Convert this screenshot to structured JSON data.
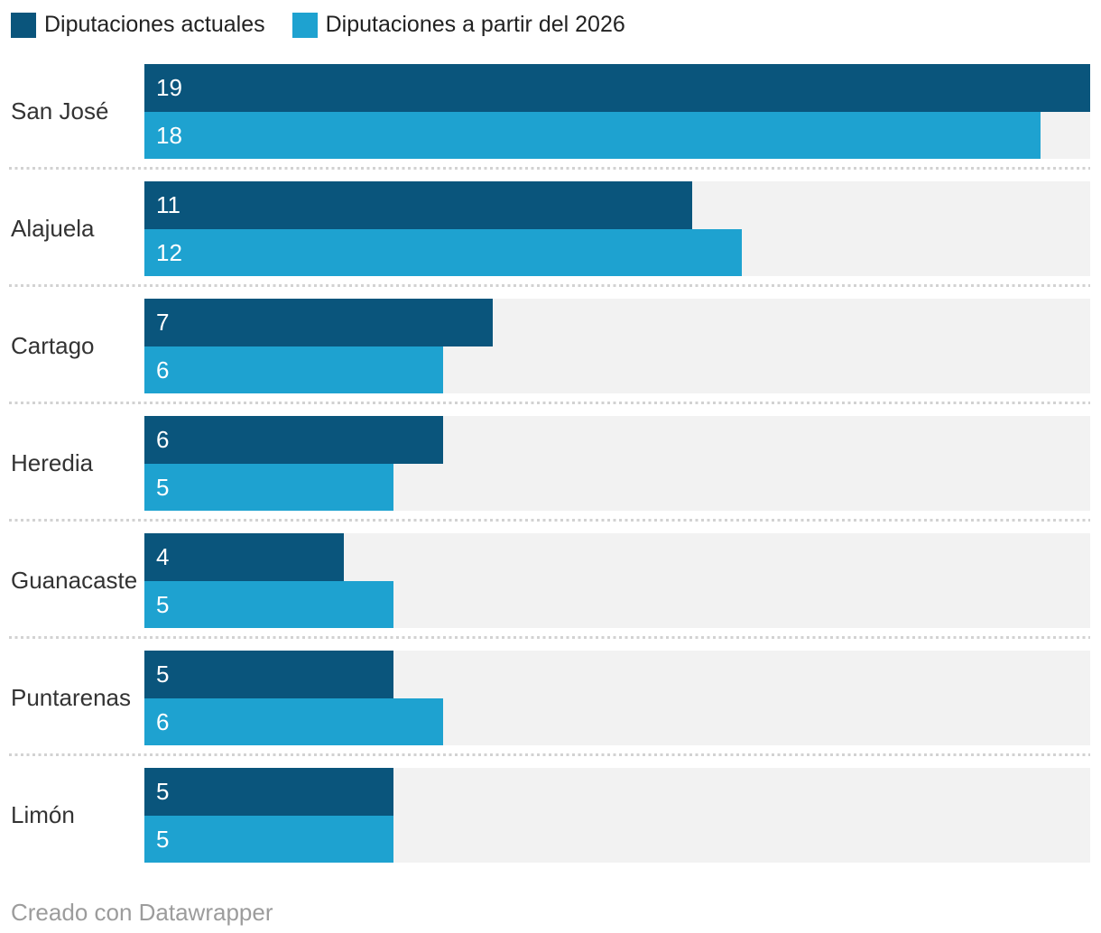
{
  "legend": {
    "items": [
      {
        "label": "Diputaciones actuales",
        "color": "#0A557C"
      },
      {
        "label": "Diputaciones a partir del 2026",
        "color": "#1EA2D0"
      }
    ]
  },
  "chart_data": {
    "type": "bar",
    "orientation": "horizontal",
    "title": "",
    "categories": [
      "San José",
      "Alajuela",
      "Cartago",
      "Heredia",
      "Guanacaste",
      "Puntarenas",
      "Limón"
    ],
    "series": [
      {
        "name": "Diputaciones actuales",
        "color": "#0A557C",
        "values": [
          19,
          11,
          7,
          6,
          4,
          5,
          5
        ]
      },
      {
        "name": "Diputaciones a partir del 2026",
        "color": "#1EA2D0",
        "values": [
          18,
          12,
          6,
          5,
          5,
          6,
          5
        ]
      }
    ],
    "xlim": [
      0,
      19
    ],
    "grid": false,
    "legend_position": "top",
    "value_labels": "inside-start",
    "value_label_color": "#FFFFFF",
    "row_background": "#F2F2F2",
    "separator_color": "#D2D2D2"
  },
  "footer": {
    "credit": "Creado con Datawrapper"
  }
}
